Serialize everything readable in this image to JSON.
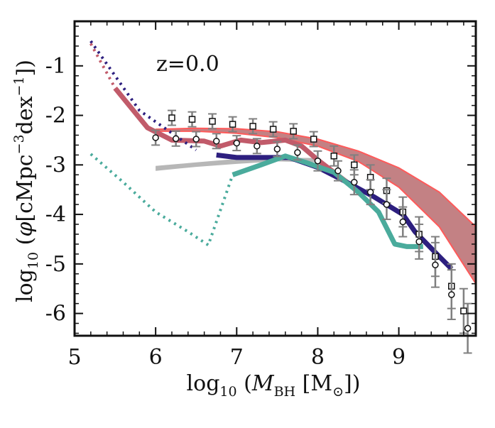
{
  "chart_data": {
    "type": "line",
    "title": "",
    "annotation": "z=0.0",
    "xlabel": "log10 (M_BH [M_⊙])",
    "ylabel": "log10 (φ[cMpc^-3 dex^-1])",
    "xlim": [
      5.0,
      9.95
    ],
    "ylim": [
      -6.45,
      -0.1
    ],
    "xticks": [
      5,
      6,
      7,
      8,
      9
    ],
    "xtick_labels": [
      "5",
      "6",
      "7",
      "8",
      "9"
    ],
    "yticks": [
      -1,
      -2,
      -3,
      -4,
      -5,
      -6
    ],
    "ytick_labels": [
      "-1",
      "-2",
      "-3",
      "-4",
      "-5",
      "-6"
    ],
    "band_red": {
      "color": "#b86b6e",
      "edge_color": "#ff5a5a",
      "x": [
        6.0,
        6.5,
        7.0,
        7.5,
        8.0,
        8.5,
        9.0,
        9.5,
        9.95
      ],
      "upper": [
        -2.28,
        -2.26,
        -2.27,
        -2.33,
        -2.48,
        -2.72,
        -3.06,
        -3.55,
        -4.25
      ],
      "lower": [
        -2.32,
        -2.32,
        -2.36,
        -2.45,
        -2.62,
        -2.93,
        -3.45,
        -4.25,
        -5.4
      ]
    },
    "band_gray": {
      "color": "#aaaaaa",
      "x": [
        6.0,
        6.5,
        7.0,
        7.5,
        8.0
      ],
      "upper": [
        -3.02,
        -2.95,
        -2.88,
        -2.86,
        -2.86
      ],
      "lower": [
        -3.12,
        -3.04,
        -2.98,
        -2.93,
        -2.95
      ]
    },
    "series": [
      {
        "color": "#c15b6a",
        "x": [
          5.2,
          5.5,
          5.9,
          6.2,
          6.6,
          6.8,
          7.05,
          7.3,
          7.6,
          7.8,
          8.0,
          8.2,
          8.4
        ],
        "y": [
          -0.55,
          -1.45,
          -2.25,
          -2.5,
          -2.52,
          -2.62,
          -2.5,
          -2.55,
          -2.5,
          -2.62,
          -2.9,
          -3.15,
          -3.4
        ],
        "dash_split": 5.5
      },
      {
        "color": "#2d1f7f",
        "x": [
          5.2,
          5.8,
          6.5,
          6.75,
          7.0,
          7.3,
          7.65,
          8.0,
          8.3,
          8.7,
          9.05,
          9.2,
          9.5,
          9.65
        ],
        "y": [
          -0.5,
          -1.9,
          -2.7,
          -2.8,
          -2.85,
          -2.85,
          -2.85,
          -3.05,
          -3.3,
          -3.65,
          -4.0,
          -4.35,
          -4.85,
          -5.1
        ],
        "dash_split": 6.6
      },
      {
        "color": "#4aab9c",
        "x": [
          5.2,
          5.6,
          6.0,
          6.4,
          6.65,
          6.95,
          7.3,
          7.6,
          7.85,
          8.2,
          8.5,
          8.75,
          8.95,
          9.1,
          9.3
        ],
        "y": [
          -2.78,
          -3.35,
          -3.95,
          -4.35,
          -4.62,
          -3.2,
          -3.0,
          -2.82,
          -2.95,
          -3.15,
          -3.55,
          -3.95,
          -4.6,
          -4.65,
          -4.65
        ],
        "dash_split": 6.95
      }
    ],
    "obs_squares": {
      "color": "#808080",
      "x": [
        6.2,
        6.45,
        6.7,
        6.95,
        7.2,
        7.45,
        7.7,
        7.95,
        8.2,
        8.45,
        8.65,
        8.85,
        9.05,
        9.25,
        9.45,
        9.65,
        9.8
      ],
      "y": [
        -2.05,
        -2.08,
        -2.12,
        -2.18,
        -2.22,
        -2.28,
        -2.32,
        -2.48,
        -2.82,
        -3.0,
        -3.25,
        -3.52,
        -3.95,
        -4.4,
        -4.85,
        -5.45,
        -5.95
      ],
      "err": [
        0.15,
        0.15,
        0.15,
        0.15,
        0.15,
        0.15,
        0.15,
        0.15,
        0.2,
        0.2,
        0.25,
        0.25,
        0.3,
        0.35,
        0.4,
        0.45,
        0.45
      ]
    },
    "obs_circles": {
      "color": "#808080",
      "x": [
        6.0,
        6.25,
        6.5,
        6.75,
        7.0,
        7.25,
        7.5,
        7.75,
        8.0,
        8.25,
        8.45,
        8.65,
        8.85,
        9.05,
        9.25,
        9.45,
        9.65,
        9.85
      ],
      "y": [
        -2.45,
        -2.47,
        -2.48,
        -2.52,
        -2.56,
        -2.62,
        -2.68,
        -2.75,
        -2.92,
        -3.12,
        -3.35,
        -3.55,
        -3.8,
        -4.15,
        -4.55,
        -5.02,
        -5.62,
        -6.3
      ],
      "err": [
        0.15,
        0.15,
        0.15,
        0.15,
        0.15,
        0.15,
        0.15,
        0.15,
        0.2,
        0.2,
        0.25,
        0.25,
        0.3,
        0.3,
        0.35,
        0.45,
        0.5,
        0.5
      ]
    }
  }
}
